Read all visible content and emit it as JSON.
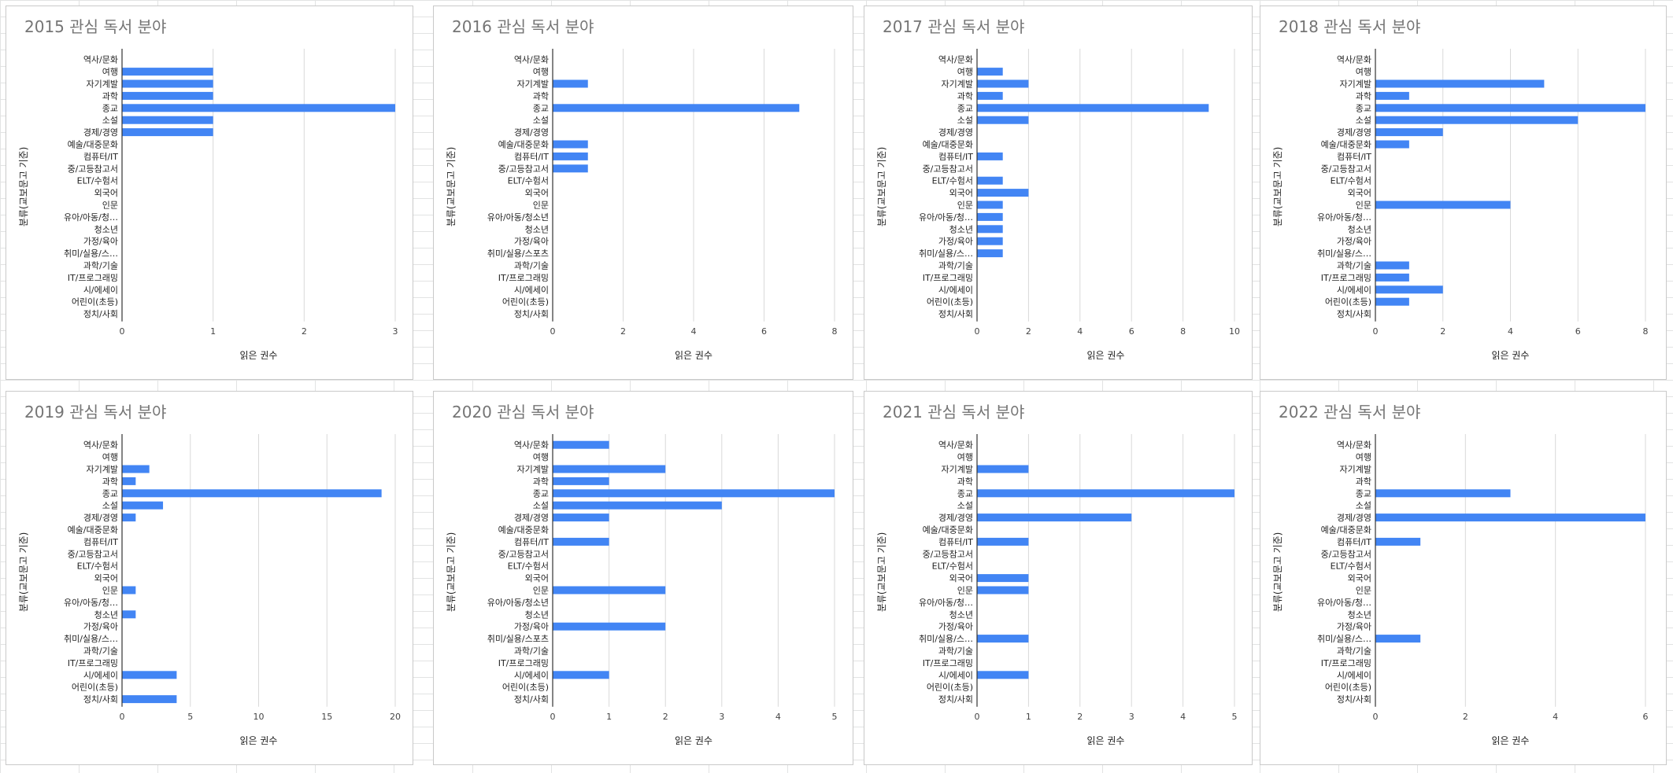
{
  "colors": {
    "bar": "#4285f4",
    "title": "#757575",
    "grid": "#d9d9d9"
  },
  "chart_data": [
    {
      "type": "bar",
      "orientation": "horizontal",
      "title": "2015 관심 독서 분야",
      "xlabel": "읽은 권수",
      "ylabel": "분류(교보문고 기준)",
      "categories": [
        "역사/문화",
        "여행",
        "자기계발",
        "과학",
        "종교",
        "소설",
        "경제/경영",
        "예술/대중문화",
        "컴퓨터/IT",
        "중/고등참고서",
        "ELT/수험서",
        "외국어",
        "인문",
        "유아/아동/청…",
        "청소년",
        "가정/육아",
        "취미/실용/스…",
        "과학/기술",
        "IT/프로그래밍",
        "시/에세이",
        "어린이(초등)",
        "정치/사회"
      ],
      "values": [
        0,
        1,
        1,
        1,
        3,
        1,
        1,
        0,
        0,
        0,
        0,
        0,
        0,
        0,
        0,
        0,
        0,
        0,
        0,
        0,
        0,
        0
      ],
      "xlim": [
        0,
        3
      ],
      "xticks": [
        "0",
        "1",
        "2",
        "3"
      ]
    },
    {
      "type": "bar",
      "orientation": "horizontal",
      "title": "2016 관심 독서 분야",
      "xlabel": "읽은 권수",
      "ylabel": "분류(교보문고 기준)",
      "categories": [
        "역사/문화",
        "여행",
        "자기계발",
        "과학",
        "종교",
        "소설",
        "경제/경영",
        "예술/대중문화",
        "컴퓨터/IT",
        "중/고등참고서",
        "ELT/수험서",
        "외국어",
        "인문",
        "유아/아동/청소년",
        "청소년",
        "가정/육아",
        "취미/실용/스포츠",
        "과학/기술",
        "IT/프로그래밍",
        "시/에세이",
        "어린이(초등)",
        "정치/사회"
      ],
      "values": [
        0,
        0,
        1,
        0,
        7,
        0,
        0,
        1,
        1,
        1,
        0,
        0,
        0,
        0,
        0,
        0,
        0,
        0,
        0,
        0,
        0,
        0
      ],
      "xlim": [
        0,
        8
      ],
      "xticks": [
        "0",
        "2",
        "4",
        "6",
        "8"
      ]
    },
    {
      "type": "bar",
      "orientation": "horizontal",
      "title": "2017 관심 독서 분야",
      "xlabel": "읽은 권수",
      "ylabel": "분류(교보문고 기준)",
      "categories": [
        "역사/문화",
        "여행",
        "자기계발",
        "과학",
        "종교",
        "소설",
        "경제/경영",
        "예술/대중문화",
        "컴퓨터/IT",
        "중/고등참고서",
        "ELT/수험서",
        "외국어",
        "인문",
        "유아/아동/청…",
        "청소년",
        "가정/육아",
        "취미/실용/스…",
        "과학/기술",
        "IT/프로그래밍",
        "시/에세이",
        "어린이(초등)",
        "정치/사회"
      ],
      "values": [
        0,
        1,
        2,
        1,
        9,
        2,
        0,
        0,
        1,
        0,
        1,
        2,
        1,
        1,
        1,
        1,
        1,
        0,
        0,
        0,
        0,
        0
      ],
      "xlim": [
        0,
        10
      ],
      "xticks": [
        "0",
        "2",
        "4",
        "6",
        "8",
        "10"
      ]
    },
    {
      "type": "bar",
      "orientation": "horizontal",
      "title": "2018 관심 독서 분야",
      "xlabel": "읽은 권수",
      "ylabel": "분류(교보문고 기준)",
      "categories": [
        "역사/문화",
        "여행",
        "자기계발",
        "과학",
        "종교",
        "소설",
        "경제/경영",
        "예술/대중문화",
        "컴퓨터/IT",
        "중/고등참고서",
        "ELT/수험서",
        "외국어",
        "인문",
        "유아/아동/청…",
        "청소년",
        "가정/육아",
        "취미/실용/스…",
        "과학/기술",
        "IT/프로그래밍",
        "시/에세이",
        "어린이(초등)",
        "정치/사회"
      ],
      "values": [
        0,
        0,
        5,
        1,
        8,
        6,
        2,
        1,
        0,
        0,
        0,
        0,
        4,
        0,
        0,
        0,
        0,
        1,
        1,
        2,
        1,
        0
      ],
      "xlim": [
        0,
        8
      ],
      "xticks": [
        "0",
        "2",
        "4",
        "6",
        "8"
      ]
    },
    {
      "type": "bar",
      "orientation": "horizontal",
      "title": "2019 관심 독서 분야",
      "xlabel": "읽은 권수",
      "ylabel": "분류(교보문고 기준)",
      "categories": [
        "역사/문화",
        "여행",
        "자기계발",
        "과학",
        "종교",
        "소설",
        "경제/경영",
        "예술/대중문화",
        "컴퓨터/IT",
        "중/고등참고서",
        "ELT/수험서",
        "외국어",
        "인문",
        "유아/아동/청…",
        "청소년",
        "가정/육아",
        "취미/실용/스…",
        "과학/기술",
        "IT/프로그래밍",
        "시/에세이",
        "어린이(초등)",
        "정치/사회"
      ],
      "values": [
        0,
        0,
        2,
        1,
        19,
        3,
        1,
        0,
        0,
        0,
        0,
        0,
        1,
        0,
        1,
        0,
        0,
        0,
        0,
        4,
        0,
        4
      ],
      "xlim": [
        0,
        20
      ],
      "xticks": [
        "0",
        "5",
        "10",
        "15",
        "20"
      ]
    },
    {
      "type": "bar",
      "orientation": "horizontal",
      "title": "2020 관심 독서 분야",
      "xlabel": "읽은 권수",
      "ylabel": "분류(교보문고 기준)",
      "categories": [
        "역사/문화",
        "여행",
        "자기계발",
        "과학",
        "종교",
        "소설",
        "경제/경영",
        "예술/대중문화",
        "컴퓨터/IT",
        "중/고등참고서",
        "ELT/수험서",
        "외국어",
        "인문",
        "유아/아동/청소년",
        "청소년",
        "가정/육아",
        "취미/실용/스포츠",
        "과학/기술",
        "IT/프로그래밍",
        "시/에세이",
        "어린이(초등)",
        "정치/사회"
      ],
      "values": [
        1,
        0,
        2,
        1,
        5,
        3,
        1,
        0,
        1,
        0,
        0,
        0,
        2,
        0,
        0,
        2,
        0,
        0,
        0,
        1,
        0,
        0
      ],
      "xlim": [
        0,
        5
      ],
      "xticks": [
        "0",
        "1",
        "2",
        "3",
        "4",
        "5"
      ]
    },
    {
      "type": "bar",
      "orientation": "horizontal",
      "title": "2021 관심 독서 분야",
      "xlabel": "읽은 권수",
      "ylabel": "분류(교보문고 기준)",
      "categories": [
        "역사/문화",
        "여행",
        "자기계발",
        "과학",
        "종교",
        "소설",
        "경제/경영",
        "예술/대중문화",
        "컴퓨터/IT",
        "중/고등참고서",
        "ELT/수험서",
        "외국어",
        "인문",
        "유아/아동/청…",
        "청소년",
        "가정/육아",
        "취미/실용/스…",
        "과학/기술",
        "IT/프로그래밍",
        "시/에세이",
        "어린이(초등)",
        "정치/사회"
      ],
      "values": [
        0,
        0,
        1,
        0,
        5,
        0,
        3,
        0,
        1,
        0,
        0,
        1,
        1,
        0,
        0,
        0,
        1,
        0,
        0,
        1,
        0,
        0
      ],
      "xlim": [
        0,
        5
      ],
      "xticks": [
        "0",
        "1",
        "2",
        "3",
        "4",
        "5"
      ]
    },
    {
      "type": "bar",
      "orientation": "horizontal",
      "title": "2022 관심 독서 분야",
      "xlabel": "읽은 권수",
      "ylabel": "분류(교보문고 기준)",
      "categories": [
        "역사/문화",
        "여행",
        "자기계발",
        "과학",
        "종교",
        "소설",
        "경제/경영",
        "예술/대중문화",
        "컴퓨터/IT",
        "중/고등참고서",
        "ELT/수험서",
        "외국어",
        "인문",
        "유아/아동/청…",
        "청소년",
        "가정/육아",
        "취미/실용/스…",
        "과학/기술",
        "IT/프로그래밍",
        "시/에세이",
        "어린이(초등)",
        "정치/사회"
      ],
      "values": [
        0,
        0,
        0,
        0,
        3,
        0,
        6,
        0,
        1,
        0,
        0,
        0,
        0,
        0,
        0,
        0,
        1,
        0,
        0,
        0,
        0,
        0
      ],
      "xlim": [
        0,
        6
      ],
      "xticks": [
        "0",
        "2",
        "4",
        "6"
      ]
    }
  ]
}
